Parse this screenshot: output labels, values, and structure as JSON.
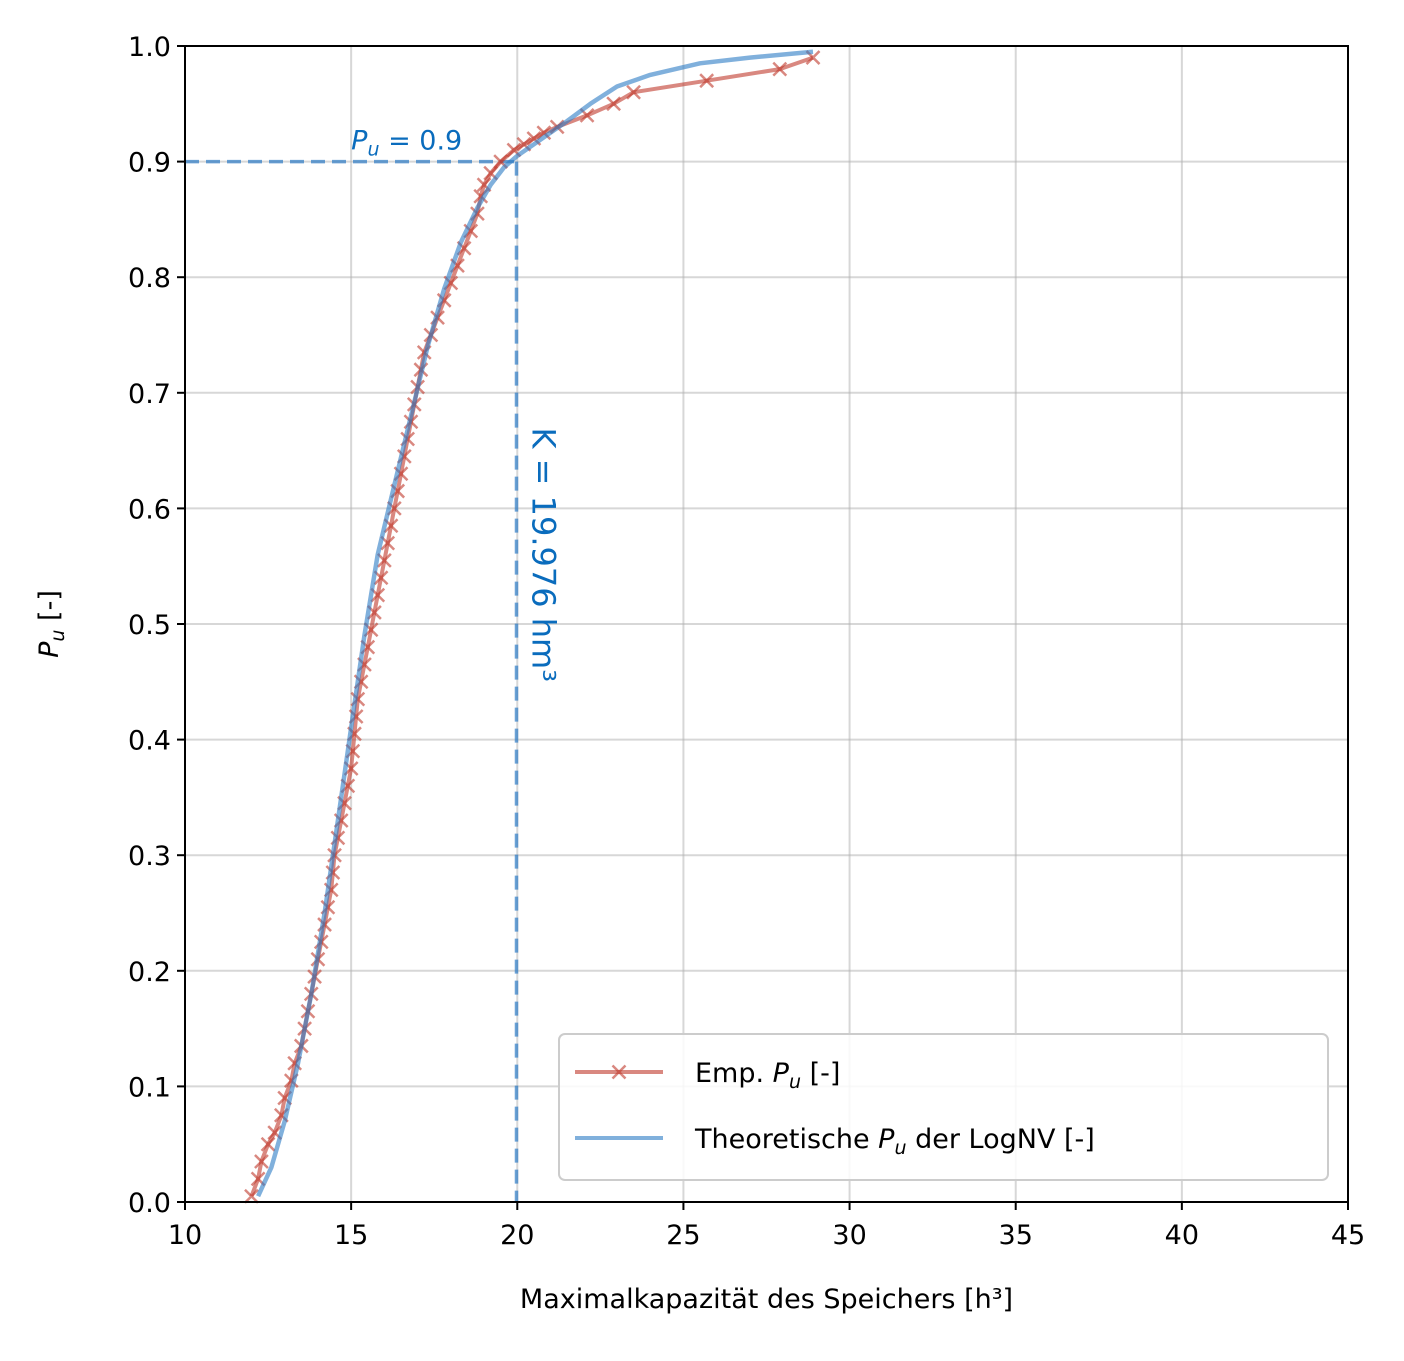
{
  "chart_data": {
    "type": "line",
    "xlabel": "Maximalkapazität des Speichers [h³]",
    "ylabel_main": "P",
    "ylabel_sub": "u",
    "ylabel_suffix": " [-]",
    "xlim": [
      10,
      45
    ],
    "ylim": [
      0.0,
      1.0
    ],
    "x_ticks": [
      10,
      15,
      20,
      25,
      30,
      35,
      40,
      45
    ],
    "x_tick_labels": [
      "10",
      "15",
      "20",
      "25",
      "30",
      "35",
      "40",
      "45"
    ],
    "y_ticks": [
      0.0,
      0.1,
      0.2,
      0.3,
      0.4,
      0.5,
      0.6,
      0.7,
      0.8,
      0.9,
      1.0
    ],
    "y_tick_labels": [
      "0.0",
      "0.1",
      "0.2",
      "0.3",
      "0.4",
      "0.5",
      "0.6",
      "0.7",
      "0.8",
      "0.9",
      "1.0"
    ],
    "grid": true,
    "legend_position": "lower-right",
    "colors": {
      "empirical": "#c0392b",
      "theoretical": "#2c7bc4",
      "annotation": "#0a6cbd"
    },
    "series": [
      {
        "name_prefix": "Emp. ",
        "name_main": "P",
        "name_sub": "u",
        "name_suffix": " [-]",
        "marker": "x",
        "x": [
          12.0,
          12.2,
          12.3,
          12.5,
          12.7,
          12.9,
          13.0,
          13.2,
          13.3,
          13.5,
          13.6,
          13.7,
          13.8,
          13.9,
          14.0,
          14.1,
          14.2,
          14.3,
          14.4,
          14.45,
          14.5,
          14.6,
          14.7,
          14.8,
          14.9,
          15.0,
          15.05,
          15.1,
          15.15,
          15.2,
          15.3,
          15.4,
          15.5,
          15.6,
          15.7,
          15.8,
          15.9,
          16.0,
          16.1,
          16.2,
          16.3,
          16.4,
          16.5,
          16.6,
          16.7,
          16.8,
          16.9,
          17.0,
          17.1,
          17.2,
          17.4,
          17.6,
          17.8,
          18.0,
          18.2,
          18.4,
          18.6,
          18.8,
          18.9,
          19.0,
          19.2,
          19.5,
          19.9,
          20.2,
          20.5,
          20.8,
          21.2,
          22.1,
          22.9,
          23.5,
          25.7,
          27.9,
          28.9
        ],
        "y": [
          0.005,
          0.02,
          0.035,
          0.05,
          0.06,
          0.075,
          0.09,
          0.105,
          0.12,
          0.135,
          0.15,
          0.165,
          0.18,
          0.195,
          0.21,
          0.225,
          0.24,
          0.255,
          0.27,
          0.285,
          0.3,
          0.315,
          0.33,
          0.345,
          0.36,
          0.375,
          0.39,
          0.405,
          0.42,
          0.435,
          0.45,
          0.465,
          0.48,
          0.495,
          0.51,
          0.525,
          0.54,
          0.555,
          0.57,
          0.585,
          0.6,
          0.615,
          0.63,
          0.645,
          0.66,
          0.675,
          0.69,
          0.705,
          0.72,
          0.735,
          0.75,
          0.765,
          0.78,
          0.795,
          0.81,
          0.825,
          0.84,
          0.855,
          0.87,
          0.88,
          0.89,
          0.9,
          0.91,
          0.915,
          0.92,
          0.925,
          0.93,
          0.94,
          0.95,
          0.96,
          0.97,
          0.98,
          0.99
        ]
      },
      {
        "name_prefix": "Theoretische ",
        "name_main": "P",
        "name_sub": "u",
        "name_suffix": " der LogNV [-]",
        "marker": "none",
        "x": [
          12.2,
          12.6,
          13.0,
          13.4,
          13.8,
          14.2,
          14.6,
          15.0,
          15.4,
          15.8,
          16.3,
          16.8,
          17.3,
          17.8,
          18.3,
          18.8,
          19.2,
          19.6,
          20.0,
          20.5,
          21.0,
          21.5,
          22.2,
          23.0,
          24.0,
          25.5,
          27.0,
          28.9
        ],
        "y": [
          0.005,
          0.03,
          0.07,
          0.12,
          0.18,
          0.25,
          0.33,
          0.41,
          0.49,
          0.56,
          0.62,
          0.68,
          0.74,
          0.79,
          0.83,
          0.86,
          0.88,
          0.895,
          0.905,
          0.915,
          0.925,
          0.935,
          0.95,
          0.965,
          0.975,
          0.985,
          0.99,
          0.995
        ]
      }
    ],
    "annotations": {
      "pu_label_main": "P",
      "pu_label_sub": "u",
      "pu_label_suffix": " = 0.9",
      "k_label": "K = 19.976 hm³",
      "k_value": 19.976,
      "pu_value": 0.9
    }
  }
}
